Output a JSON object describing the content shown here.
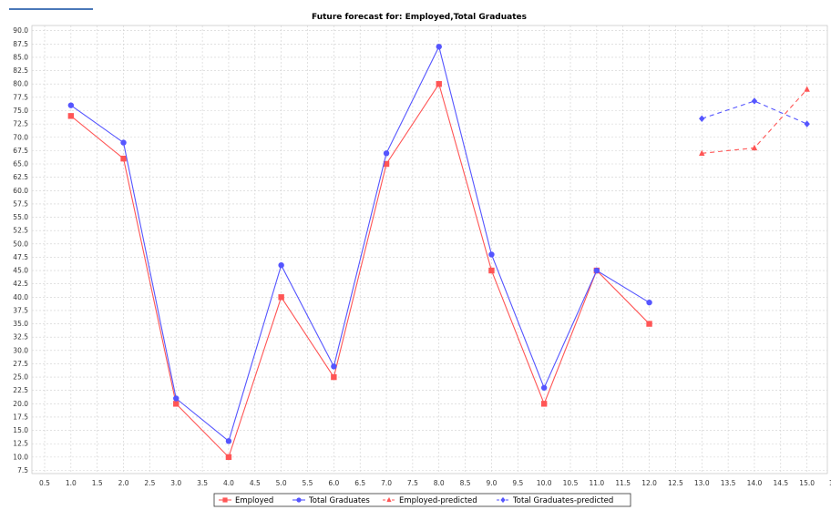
{
  "chart_data": {
    "type": "line",
    "title": "Future forecast for: Employed,Total Graduates",
    "xlabel": "",
    "ylabel": "",
    "xlim": [
      0.5,
      15.0
    ],
    "ylim": [
      6.5,
      91.0
    ],
    "x_ticks": [
      "0.5",
      "1.0",
      "1.5",
      "2.0",
      "2.5",
      "3.0",
      "3.5",
      "4.0",
      "4.5",
      "5.0",
      "5.5",
      "6.0",
      "6.5",
      "7.0",
      "7.5",
      "8.0",
      "8.5",
      "9.0",
      "9.5",
      "10.0",
      "10.5",
      "11.0",
      "11.5",
      "12.0",
      "12.5",
      "13.0",
      "13.5",
      "14.0",
      "14.5",
      "15.0",
      "15"
    ],
    "y_ticks": [
      "7.5",
      "10.0",
      "12.5",
      "15.0",
      "17.5",
      "20.0",
      "22.5",
      "25.0",
      "27.5",
      "30.0",
      "32.5",
      "35.0",
      "37.5",
      "40.0",
      "42.5",
      "45.0",
      "47.5",
      "50.0",
      "52.5",
      "55.0",
      "57.5",
      "60.0",
      "62.5",
      "65.0",
      "67.5",
      "70.0",
      "72.5",
      "75.0",
      "77.5",
      "80.0",
      "82.5",
      "85.0",
      "87.5",
      "90.0"
    ],
    "grid": true,
    "legend_position": "bottom",
    "series": [
      {
        "name": "Employed",
        "color": "#ff5555",
        "marker": "square",
        "dashed": false,
        "x": [
          1,
          2,
          3,
          4,
          5,
          6,
          7,
          8,
          9,
          10,
          11,
          12
        ],
        "values": [
          74,
          66,
          20,
          10,
          40,
          25,
          65,
          80,
          45,
          20,
          45,
          35
        ]
      },
      {
        "name": "Total Graduates",
        "color": "#5555ff",
        "marker": "circle",
        "dashed": false,
        "x": [
          1,
          2,
          3,
          4,
          5,
          6,
          7,
          8,
          9,
          10,
          11,
          12
        ],
        "values": [
          76,
          69,
          21,
          13,
          46,
          27,
          67,
          87,
          48,
          23,
          45,
          39
        ]
      },
      {
        "name": "Employed-predicted",
        "color": "#ff5555",
        "marker": "triangle",
        "dashed": true,
        "x": [
          13,
          14,
          15
        ],
        "values": [
          67,
          68,
          79
        ]
      },
      {
        "name": "Total Graduates-predicted",
        "color": "#5555ff",
        "marker": "diamond",
        "dashed": true,
        "x": [
          13,
          14,
          15
        ],
        "values": [
          73.5,
          76.8,
          72.5
        ]
      }
    ]
  }
}
